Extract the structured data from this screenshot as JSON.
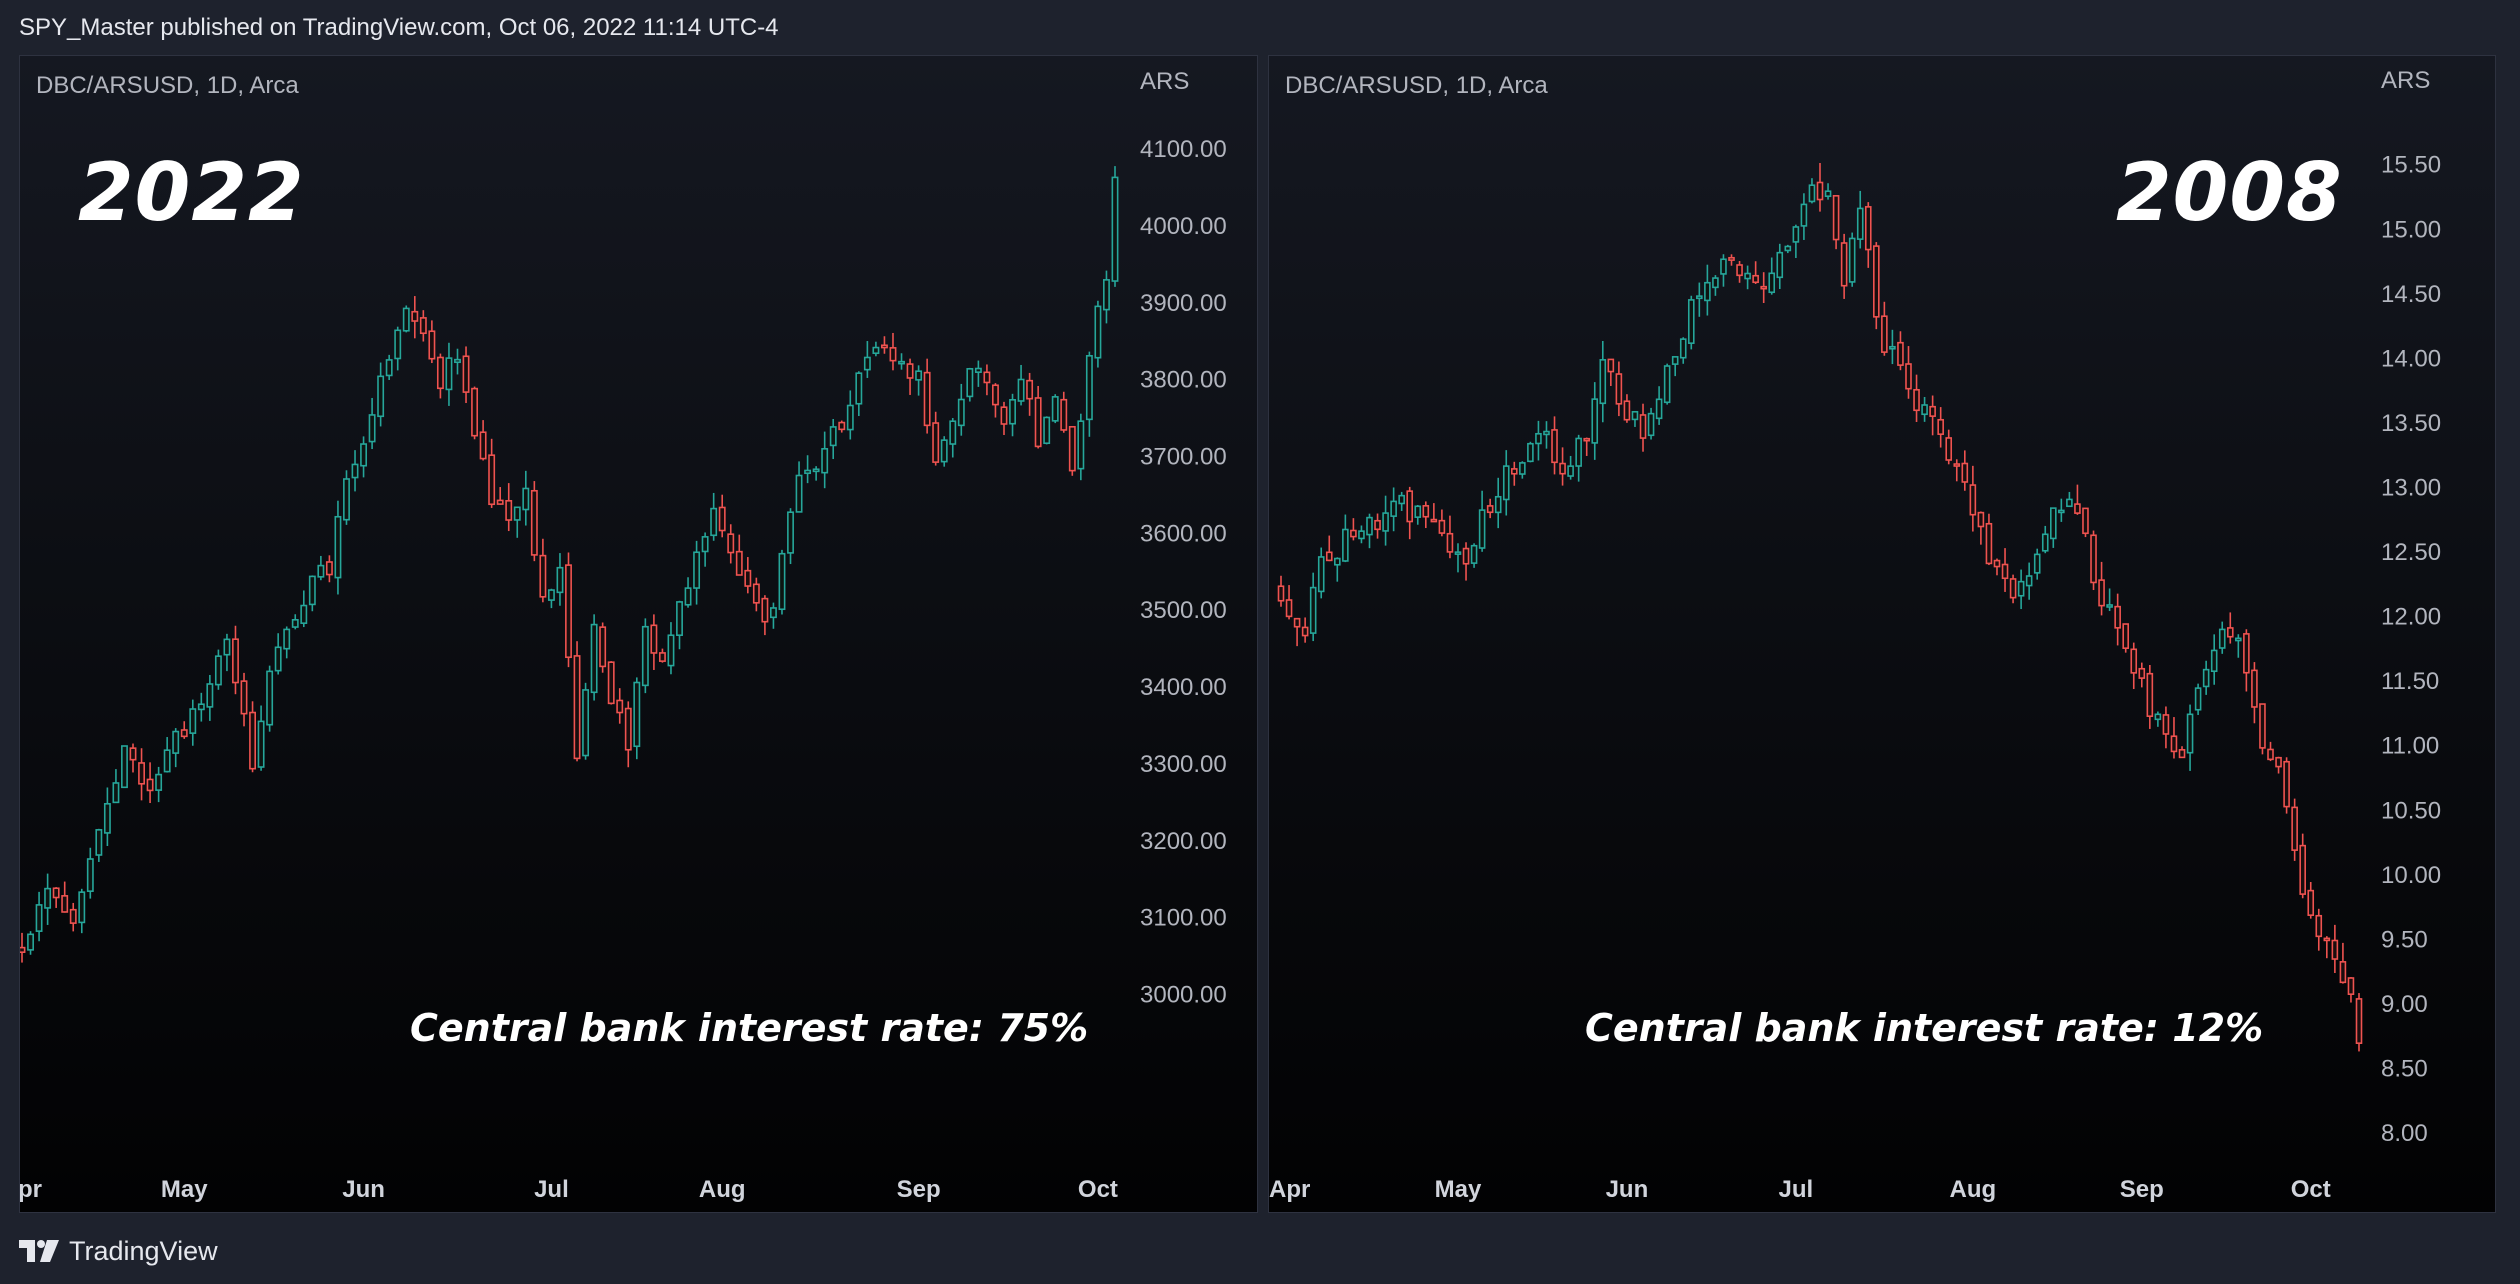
{
  "header": {
    "published": "SPY_Master published on TradingView.com, Oct 06, 2022 11:14 UTC-4"
  },
  "footer": {
    "brand": "TradingView"
  },
  "colors": {
    "up": "#26a69a",
    "down": "#ef5350",
    "background": "#1e222d"
  },
  "chart_data": [
    {
      "type": "candlestick",
      "symbol": "DBC/ARSUSD, 1D, Arca",
      "annotation_year": "2022",
      "annotation_rate": "Central bank interest rate: 75%",
      "currency_label": "ARS",
      "ylim": [
        2920,
        4130
      ],
      "yticks": [
        "4100.00",
        "4000.00",
        "3900.00",
        "3800.00",
        "3700.00",
        "3600.00",
        "3500.00",
        "3400.00",
        "3300.00",
        "3200.00",
        "3100.00",
        "3000.00"
      ],
      "months": [
        {
          "label": "pr",
          "index": 0
        },
        {
          "label": "May",
          "index": 19
        },
        {
          "label": "Jun",
          "index": 40
        },
        {
          "label": "Jul",
          "index": 62
        },
        {
          "label": "Aug",
          "index": 82
        },
        {
          "label": "Sep",
          "index": 105
        },
        {
          "label": "Oct",
          "index": 126
        }
      ],
      "close_anchors": [
        [
          0,
          3050
        ],
        [
          3,
          3130
        ],
        [
          6,
          3080
        ],
        [
          9,
          3210
        ],
        [
          12,
          3330
        ],
        [
          15,
          3250
        ],
        [
          18,
          3330
        ],
        [
          21,
          3390
        ],
        [
          24,
          3450
        ],
        [
          27,
          3300
        ],
        [
          30,
          3460
        ],
        [
          33,
          3520
        ],
        [
          36,
          3560
        ],
        [
          38,
          3680
        ],
        [
          40,
          3720
        ],
        [
          43,
          3830
        ],
        [
          45,
          3890
        ],
        [
          47,
          3860
        ],
        [
          49,
          3800
        ],
        [
          51,
          3840
        ],
        [
          53,
          3720
        ],
        [
          55,
          3650
        ],
        [
          57,
          3610
        ],
        [
          59,
          3650
        ],
        [
          61,
          3510
        ],
        [
          63,
          3560
        ],
        [
          65,
          3300
        ],
        [
          67,
          3470
        ],
        [
          69,
          3380
        ],
        [
          71,
          3330
        ],
        [
          73,
          3470
        ],
        [
          75,
          3440
        ],
        [
          77,
          3500
        ],
        [
          79,
          3560
        ],
        [
          81,
          3630
        ],
        [
          83,
          3570
        ],
        [
          85,
          3520
        ],
        [
          87,
          3470
        ],
        [
          89,
          3560
        ],
        [
          91,
          3690
        ],
        [
          93,
          3680
        ],
        [
          95,
          3730
        ],
        [
          97,
          3760
        ],
        [
          99,
          3840
        ],
        [
          101,
          3850
        ],
        [
          103,
          3820
        ],
        [
          105,
          3800
        ],
        [
          107,
          3700
        ],
        [
          109,
          3730
        ],
        [
          111,
          3820
        ],
        [
          113,
          3800
        ],
        [
          115,
          3750
        ],
        [
          117,
          3810
        ],
        [
          119,
          3720
        ],
        [
          121,
          3780
        ],
        [
          123,
          3680
        ],
        [
          125,
          3840
        ],
        [
          127,
          3930
        ],
        [
          128,
          4050
        ]
      ]
    },
    {
      "type": "candlestick",
      "symbol": "DBC/ARSUSD, 1D, Arca",
      "annotation_year": "2008",
      "annotation_rate": "Central bank interest rate: 12%",
      "currency_label": "ARS",
      "ylim": [
        7.9,
        15.8
      ],
      "yticks": [
        "15.50",
        "15.00",
        "14.50",
        "14.00",
        "13.50",
        "13.00",
        "12.50",
        "12.00",
        "11.50",
        "11.00",
        "10.50",
        "10.00",
        "9.50",
        "9.00",
        "8.50",
        "8.00"
      ],
      "months": [
        {
          "label": "Apr",
          "index": 0
        },
        {
          "label": "May",
          "index": 22
        },
        {
          "label": "Jun",
          "index": 43
        },
        {
          "label": "Jul",
          "index": 64
        },
        {
          "label": "Aug",
          "index": 86
        },
        {
          "label": "Sep",
          "index": 107
        },
        {
          "label": "Oct",
          "index": 128
        }
      ],
      "close_anchors": [
        [
          0,
          12.2
        ],
        [
          3,
          11.9
        ],
        [
          5,
          12.4
        ],
        [
          8,
          12.6
        ],
        [
          11,
          12.7
        ],
        [
          14,
          12.9
        ],
        [
          17,
          12.8
        ],
        [
          20,
          12.7
        ],
        [
          23,
          12.4
        ],
        [
          26,
          12.9
        ],
        [
          29,
          13.2
        ],
        [
          32,
          13.4
        ],
        [
          35,
          13.2
        ],
        [
          38,
          13.4
        ],
        [
          40,
          13.9
        ],
        [
          42,
          13.7
        ],
        [
          45,
          13.4
        ],
        [
          47,
          13.7
        ],
        [
          49,
          14.1
        ],
        [
          52,
          14.5
        ],
        [
          55,
          14.7
        ],
        [
          58,
          14.6
        ],
        [
          61,
          14.6
        ],
        [
          64,
          15.0
        ],
        [
          66,
          15.3
        ],
        [
          68,
          15.2
        ],
        [
          70,
          14.6
        ],
        [
          72,
          15.2
        ],
        [
          74,
          14.3
        ],
        [
          76,
          14.0
        ],
        [
          78,
          13.8
        ],
        [
          81,
          13.5
        ],
        [
          84,
          13.2
        ],
        [
          86,
          12.7
        ],
        [
          88,
          12.5
        ],
        [
          90,
          12.2
        ],
        [
          92,
          12.3
        ],
        [
          94,
          12.5
        ],
        [
          96,
          12.8
        ],
        [
          98,
          12.9
        ],
        [
          100,
          12.6
        ],
        [
          102,
          12.1
        ],
        [
          104,
          11.9
        ],
        [
          106,
          11.6
        ],
        [
          108,
          11.3
        ],
        [
          110,
          11.0
        ],
        [
          112,
          10.9
        ],
        [
          114,
          11.4
        ],
        [
          116,
          11.8
        ],
        [
          118,
          11.9
        ],
        [
          120,
          11.6
        ],
        [
          122,
          11.0
        ],
        [
          124,
          10.9
        ],
        [
          126,
          10.1
        ],
        [
          128,
          9.7
        ],
        [
          130,
          9.5
        ],
        [
          132,
          9.2
        ],
        [
          134,
          8.8
        ]
      ]
    }
  ]
}
